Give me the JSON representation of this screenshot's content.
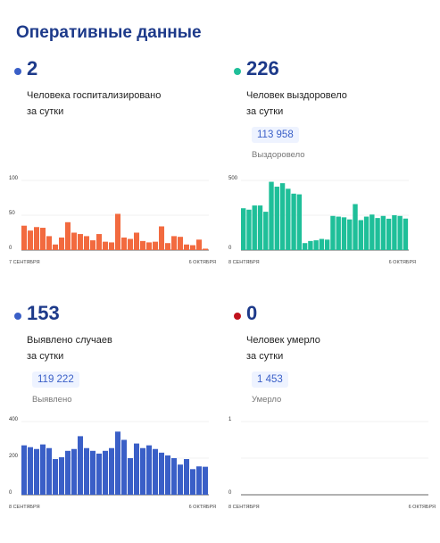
{
  "header": {
    "title": "Оперативные данные"
  },
  "cards": [
    {
      "value": "2",
      "label_line1": "Человека госпитализировано",
      "label_line2": "за сутки",
      "dot_color": "#3a5fc7",
      "total": "",
      "total_label": ""
    },
    {
      "value": "226",
      "label_line1": "Человек выздоровело",
      "label_line2": "за сутки",
      "dot_color": "#1fbf99",
      "total": "113 958",
      "total_label": "Выздоровело"
    },
    {
      "value": "153",
      "label_line1": "Выявлено случаев",
      "label_line2": "за сутки",
      "dot_color": "#3a5fc7",
      "total": "119 222",
      "total_label": "Выявлено"
    },
    {
      "value": "0",
      "label_line1": "Человек умерло",
      "label_line2": "за сутки",
      "dot_color": "#c0121c",
      "total": "1 453",
      "total_label": "Умерло"
    }
  ],
  "chart_data": [
    {
      "type": "bar",
      "color": "#f26a3f",
      "ylim": [
        0,
        100
      ],
      "yticks": [
        "0",
        "50",
        "100"
      ],
      "x_start_label": "7 СЕНТЯБРЯ",
      "x_end_label": "6 ОКТЯБРЯ",
      "values": [
        35,
        28,
        33,
        32,
        20,
        8,
        18,
        40,
        25,
        23,
        20,
        14,
        23,
        12,
        11,
        52,
        18,
        16,
        25,
        13,
        11,
        12,
        34,
        10,
        20,
        19,
        8,
        7,
        15,
        2
      ]
    },
    {
      "type": "bar",
      "color": "#1fbf99",
      "ylim": [
        0,
        500
      ],
      "yticks": [
        "0",
        "",
        "500"
      ],
      "x_start_label": "8 СЕНТЯБРЯ",
      "x_end_label": "6 ОКТЯБРЯ",
      "values": [
        300,
        290,
        320,
        320,
        275,
        490,
        455,
        480,
        440,
        405,
        400,
        50,
        65,
        70,
        80,
        75,
        245,
        240,
        235,
        220,
        330,
        215,
        240,
        255,
        230,
        245,
        225,
        250,
        245,
        226
      ]
    },
    {
      "type": "bar",
      "color": "#3a5fc7",
      "ylim": [
        0,
        400
      ],
      "yticks": [
        "0",
        "200",
        "400"
      ],
      "x_start_label": "8 СЕНТЯБРЯ",
      "x_end_label": "6 ОКТЯБРЯ",
      "values": [
        270,
        260,
        250,
        275,
        255,
        195,
        205,
        240,
        250,
        320,
        255,
        240,
        225,
        240,
        255,
        345,
        300,
        200,
        280,
        255,
        270,
        250,
        230,
        215,
        200,
        165,
        195,
        140,
        155,
        153
      ]
    },
    {
      "type": "bar",
      "color": "#c0121c",
      "ylim": [
        0,
        1
      ],
      "yticks": [
        "0",
        "",
        "1"
      ],
      "x_start_label": "8 СЕНТЯБРЯ",
      "x_end_label": "6 ОКТЯБРЯ",
      "values": [
        0,
        0,
        0,
        0,
        0,
        0,
        0,
        0,
        0,
        0,
        0,
        0,
        0,
        0,
        0,
        0,
        0,
        0,
        0,
        0,
        0,
        0,
        0,
        0,
        0,
        0,
        0,
        0,
        0,
        0
      ]
    }
  ]
}
